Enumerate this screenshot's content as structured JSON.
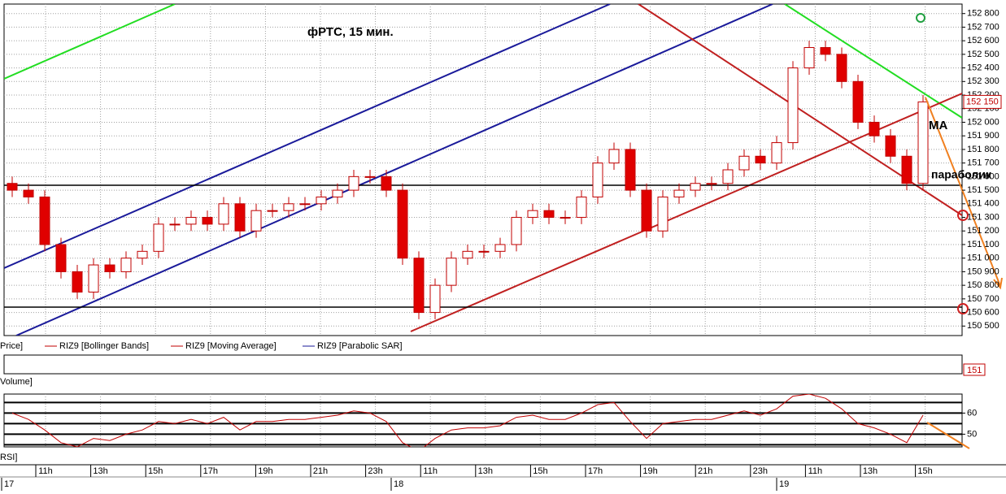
{
  "chart_data": [
    {
      "type": "candlestick",
      "title": "фРТС,  15 мин.",
      "annotations": [
        "MA",
        "параболик"
      ],
      "legend": [
        "Price]",
        "RIZ9 [Bollinger Bands]",
        "RIZ9 [Moving Average]",
        "RIZ9 [Parabolic SAR]"
      ],
      "last_price_label": "152 150",
      "volume_title": "Volume]",
      "volume_label": "151",
      "categories": [
        "11h",
        "13h",
        "15h",
        "17h",
        "19h",
        "21h",
        "23h",
        "11h",
        "13h",
        "15h",
        "17h",
        "19h",
        "21h",
        "23h",
        "11h",
        "13h",
        "15h"
      ],
      "date_labels": [
        "17",
        "18",
        "19"
      ],
      "up_color": "#ffffff",
      "down_color": "#e00000",
      "edge_color": "#c00000",
      "open": [
        151550,
        151500,
        151450,
        151100,
        150900,
        150750,
        150950,
        150900,
        151000,
        151050,
        151250,
        151250,
        151300,
        151250,
        151400,
        151200,
        151350,
        151350,
        151400,
        151400,
        151450,
        151500,
        151600,
        151600,
        151500,
        151000,
        150600,
        150800,
        151000,
        151050,
        151050,
        151100,
        151300,
        151350,
        151300,
        151300,
        151450,
        151700,
        151800,
        151500,
        151200,
        151450,
        151500,
        151550,
        151550,
        151650,
        151750,
        151700,
        151850,
        152400,
        152550,
        152500,
        152300,
        152000,
        151900,
        151750,
        151550
      ],
      "high": [
        151600,
        151550,
        151500,
        151150,
        150950,
        151000,
        151000,
        151050,
        151100,
        151300,
        151300,
        151350,
        151350,
        151450,
        151450,
        151400,
        151400,
        151450,
        151450,
        151500,
        151550,
        151650,
        151650,
        151650,
        151550,
        151050,
        150850,
        151050,
        151100,
        151100,
        151150,
        151350,
        151400,
        151400,
        151350,
        151500,
        151750,
        151850,
        151850,
        151550,
        151500,
        151550,
        151600,
        151600,
        151700,
        151800,
        151800,
        151900,
        152450,
        152600,
        152600,
        152550,
        152350,
        152050,
        151950,
        151800,
        152200
      ],
      "low": [
        151450,
        151400,
        151050,
        150850,
        150700,
        150700,
        150850,
        150850,
        150950,
        151000,
        151200,
        151200,
        151200,
        151200,
        151150,
        151150,
        151300,
        151300,
        151350,
        151350,
        151400,
        151450,
        151550,
        151450,
        150950,
        150550,
        150550,
        150750,
        150950,
        151000,
        151000,
        151050,
        151250,
        151250,
        151250,
        151250,
        151400,
        151650,
        151450,
        151150,
        151150,
        151400,
        151450,
        151500,
        151500,
        151600,
        151650,
        151650,
        151800,
        152350,
        152450,
        152250,
        151950,
        151850,
        151700,
        151500,
        151500
      ],
      "close": [
        151500,
        151450,
        151100,
        150900,
        150750,
        150950,
        150900,
        151000,
        151050,
        151250,
        151250,
        151300,
        151250,
        151400,
        151200,
        151350,
        151350,
        151400,
        151400,
        151450,
        151500,
        151600,
        151600,
        151500,
        151000,
        150600,
        150800,
        151000,
        151050,
        151050,
        151100,
        151300,
        151350,
        151300,
        151300,
        151450,
        151700,
        151800,
        151500,
        151200,
        151450,
        151500,
        151550,
        151550,
        151650,
        151750,
        151700,
        151850,
        152400,
        152550,
        152500,
        152300,
        152000,
        151900,
        151750,
        151550,
        152150
      ],
      "ylim": [
        150430,
        152870
      ],
      "yticks": [
        {
          "value": 150500,
          "label": "150 500"
        },
        {
          "value": 150600,
          "label": "150 600"
        },
        {
          "value": 150700,
          "label": "150 700"
        },
        {
          "value": 150800,
          "label": "150 800"
        },
        {
          "value": 150900,
          "label": "150 900"
        },
        {
          "value": 151000,
          "label": "151 000"
        },
        {
          "value": 151100,
          "label": "151 100"
        },
        {
          "value": 151200,
          "label": "151 200"
        },
        {
          "value": 151300,
          "label": "151 300"
        },
        {
          "value": 151400,
          "label": "151 400"
        },
        {
          "value": 151500,
          "label": "151 500"
        },
        {
          "value": 151600,
          "label": "151 600"
        },
        {
          "value": 151700,
          "label": "151 700"
        },
        {
          "value": 151800,
          "label": "151 800"
        },
        {
          "value": 151900,
          "label": "151 900"
        },
        {
          "value": 152000,
          "label": "152 000"
        },
        {
          "value": 152100,
          "label": "152 100"
        },
        {
          "value": 152200,
          "label": "152 200"
        },
        {
          "value": 152300,
          "label": "152 300"
        },
        {
          "value": 152400,
          "label": "152 400"
        },
        {
          "value": 152500,
          "label": "152 500"
        },
        {
          "value": 152600,
          "label": "152 600"
        },
        {
          "value": 152700,
          "label": "152 700"
        },
        {
          "value": 152800,
          "label": "152 800"
        }
      ],
      "grid": true
    },
    {
      "type": "line",
      "title": "RSI]",
      "color": "#c00000",
      "values": [
        60,
        57,
        52,
        46,
        44,
        48,
        47,
        50,
        52,
        56,
        55,
        57,
        55,
        58,
        52,
        56,
        56,
        57,
        57,
        58,
        59,
        61,
        60,
        56,
        46,
        42,
        48,
        52,
        53,
        53,
        54,
        58,
        59,
        57,
        57,
        60,
        64,
        65,
        56,
        48,
        55,
        56,
        57,
        57,
        59,
        61,
        59,
        62,
        68,
        69,
        67,
        62,
        55,
        53,
        50,
        46,
        59
      ],
      "ylim": [
        44,
        69
      ],
      "yticks": [
        50,
        60
      ],
      "levels": [
        45,
        50,
        55,
        60,
        65
      ]
    }
  ]
}
